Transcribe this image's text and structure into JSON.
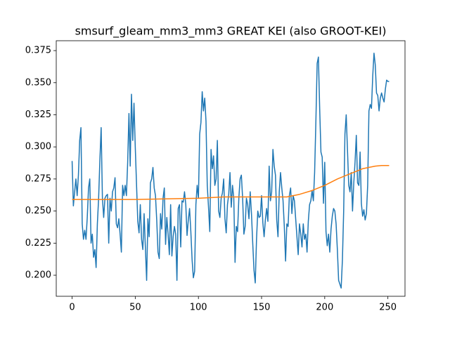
{
  "chart_data": {
    "type": "line",
    "title": "smsurf_gleam_mm3_mm3 GREAT KEI (also GROOT-KEI)",
    "series": [
      {
        "color": "#1f77b4",
        "x": [
          0,
          1,
          2,
          3,
          4,
          5,
          6,
          7,
          8,
          9,
          10,
          11,
          12,
          13,
          14,
          15,
          16,
          17,
          18,
          19,
          20,
          21,
          22,
          23,
          24,
          25,
          26,
          27,
          28,
          29,
          30,
          31,
          32,
          33,
          34,
          35,
          36,
          37,
          38,
          39,
          40,
          41,
          42,
          43,
          44,
          45,
          46,
          47,
          48,
          49,
          50,
          51,
          52,
          53,
          54,
          55,
          56,
          57,
          58,
          59,
          60,
          61,
          62,
          63,
          64,
          65,
          66,
          67,
          68,
          69,
          70,
          71,
          72,
          73,
          74,
          75,
          76,
          77,
          78,
          79,
          80,
          81,
          82,
          83,
          84,
          85,
          86,
          87,
          88,
          89,
          90,
          91,
          92,
          93,
          94,
          95,
          96,
          97,
          98,
          99,
          100,
          101,
          102,
          103,
          104,
          105,
          106,
          107,
          108,
          109,
          110,
          111,
          112,
          113,
          114,
          115,
          116,
          117,
          118,
          119,
          120,
          121,
          122,
          123,
          124,
          125,
          126,
          127,
          128,
          129,
          130,
          131,
          132,
          133,
          134,
          135,
          136,
          137,
          138,
          139,
          140,
          141,
          142,
          143,
          144,
          145,
          146,
          147,
          148,
          149,
          150,
          151,
          152,
          153,
          154,
          155,
          156,
          157,
          158,
          159,
          160,
          161,
          162,
          163,
          164,
          165,
          166,
          167,
          168,
          169,
          170,
          171,
          172,
          173,
          174,
          175,
          176,
          177,
          178,
          179,
          180,
          181,
          182,
          183,
          184,
          185,
          186,
          187,
          188,
          189,
          190,
          191,
          192,
          193,
          194,
          195,
          196,
          197,
          198,
          199,
          200,
          201,
          202,
          203,
          204,
          205,
          206,
          207,
          208,
          209,
          210,
          211,
          212,
          213,
          214,
          215,
          216,
          217,
          218,
          219,
          220,
          221,
          222,
          223,
          224,
          225,
          226,
          227,
          228,
          229,
          230,
          231,
          232,
          233,
          234,
          235,
          236,
          237,
          238,
          239,
          240,
          241,
          242,
          243,
          244,
          245,
          246,
          247,
          248,
          249,
          250,
          251
        ],
        "values": [
          0.289,
          0.254,
          0.265,
          0.275,
          0.262,
          0.278,
          0.305,
          0.315,
          0.24,
          0.228,
          0.235,
          0.228,
          0.245,
          0.268,
          0.275,
          0.225,
          0.232,
          0.214,
          0.22,
          0.206,
          0.24,
          0.26,
          0.29,
          0.315,
          0.26,
          0.245,
          0.26,
          0.262,
          0.263,
          0.225,
          0.26,
          0.25,
          0.265,
          0.268,
          0.276,
          0.24,
          0.237,
          0.244,
          0.232,
          0.218,
          0.27,
          0.262,
          0.27,
          0.262,
          0.288,
          0.326,
          0.285,
          0.341,
          0.305,
          0.334,
          0.3,
          0.271,
          0.242,
          0.233,
          0.255,
          0.228,
          0.22,
          0.248,
          0.222,
          0.196,
          0.244,
          0.23,
          0.272,
          0.275,
          0.284,
          0.268,
          0.262,
          0.243,
          0.218,
          0.213,
          0.248,
          0.236,
          0.26,
          0.268,
          0.224,
          0.245,
          0.232,
          0.216,
          0.255,
          0.215,
          0.23,
          0.238,
          0.232,
          0.196,
          0.252,
          0.255,
          0.222,
          0.258,
          0.257,
          0.265,
          0.255,
          0.231,
          0.243,
          0.252,
          0.234,
          0.212,
          0.198,
          0.203,
          0.255,
          0.27,
          0.26,
          0.31,
          0.319,
          0.343,
          0.328,
          0.338,
          0.32,
          0.27,
          0.253,
          0.234,
          0.298,
          0.283,
          0.293,
          0.27,
          0.275,
          0.305,
          0.25,
          0.245,
          0.26,
          0.264,
          0.275,
          0.244,
          0.233,
          0.255,
          0.263,
          0.28,
          0.253,
          0.27,
          0.26,
          0.21,
          0.238,
          0.234,
          0.26,
          0.275,
          0.278,
          0.26,
          0.232,
          0.238,
          0.26,
          0.255,
          0.244,
          0.265,
          0.248,
          0.225,
          0.204,
          0.194,
          0.228,
          0.25,
          0.245,
          0.246,
          0.262,
          0.241,
          0.23,
          0.243,
          0.252,
          0.242,
          0.285,
          0.258,
          0.265,
          0.298,
          0.285,
          0.278,
          0.243,
          0.23,
          0.265,
          0.28,
          0.268,
          0.258,
          0.238,
          0.211,
          0.24,
          0.238,
          0.262,
          0.268,
          0.248,
          0.262,
          0.258,
          0.244,
          0.23,
          0.216,
          0.24,
          0.232,
          0.222,
          0.24,
          0.228,
          0.232,
          0.218,
          0.242,
          0.255,
          0.258,
          0.266,
          0.258,
          0.28,
          0.32,
          0.365,
          0.37,
          0.33,
          0.296,
          0.292,
          0.256,
          0.288,
          0.234,
          0.223,
          0.232,
          0.218,
          0.236,
          0.246,
          0.252,
          0.25,
          0.24,
          0.22,
          0.196,
          0.193,
          0.19,
          0.212,
          0.25,
          0.31,
          0.325,
          0.298,
          0.27,
          0.265,
          0.28,
          0.25,
          0.272,
          0.288,
          0.309,
          0.272,
          0.27,
          0.296,
          0.256,
          0.246,
          0.251,
          0.243,
          0.248,
          0.27,
          0.328,
          0.333,
          0.33,
          0.355,
          0.373,
          0.364,
          0.342,
          0.34,
          0.328,
          0.338,
          0.342,
          0.338,
          0.335,
          0.345,
          0.352,
          0.351,
          0.351
        ]
      },
      {
        "color": "#ff7f0e",
        "x": [
          0,
          50,
          100,
          120,
          150,
          170,
          180,
          190,
          200,
          210,
          220,
          230,
          240,
          245,
          251
        ],
        "values": [
          0.259,
          0.259,
          0.26,
          0.261,
          0.261,
          0.261,
          0.263,
          0.266,
          0.27,
          0.275,
          0.279,
          0.283,
          0.285,
          0.2855,
          0.2855
        ]
      }
    ],
    "xlim": [
      -12.55,
      263.55
    ],
    "ylim": [
      0.1836,
      0.3827
    ],
    "xticks": [
      0,
      50,
      100,
      150,
      200,
      250
    ],
    "yticks": [
      {
        "value": 0.2,
        "label": "0.200"
      },
      0.225,
      {
        "value": 0.25,
        "label": "0.250"
      },
      0.275,
      {
        "value": 0.3,
        "label": "0.300"
      },
      0.325,
      {
        "value": 0.35,
        "label": "0.350"
      },
      0.375
    ]
  }
}
